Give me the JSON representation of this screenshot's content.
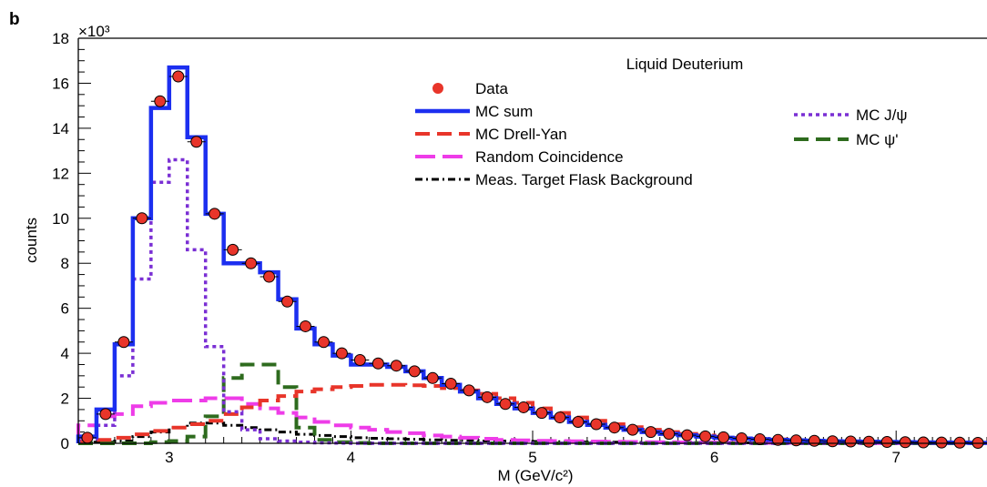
{
  "panel_label": "b",
  "chart_data": {
    "type": "line",
    "title": "Liquid Deuterium",
    "xlabel": "M (GeV/c²)",
    "ylabel": "counts",
    "y_multiplier": "×10³",
    "xlim": [
      2.5,
      7.5
    ],
    "ylim": [
      0,
      18
    ],
    "x_ticks": [
      "3",
      "4",
      "5",
      "6",
      "7"
    ],
    "y_ticks": [
      "0",
      "2",
      "4",
      "6",
      "8",
      "10",
      "12",
      "14",
      "16",
      "18"
    ],
    "bin_edges": [
      2.5,
      2.6,
      2.7,
      2.8,
      2.9,
      3.0,
      3.1,
      3.2,
      3.3,
      3.4,
      3.5,
      3.6,
      3.7,
      3.8,
      3.9,
      4.0,
      4.1,
      4.2,
      4.3,
      4.4,
      4.5,
      4.6,
      4.7,
      4.8,
      4.9,
      5.0,
      5.1,
      5.2,
      5.3,
      5.4,
      5.5,
      5.6,
      5.7,
      5.8,
      5.9,
      6.0,
      6.1,
      6.2,
      6.3,
      6.4,
      6.5,
      6.6,
      6.7,
      6.8,
      6.9,
      7.0,
      7.1,
      7.2,
      7.3,
      7.4,
      7.5
    ],
    "series": [
      {
        "name": "Data",
        "style": "markers",
        "color": "#e8352a",
        "values": [
          0.25,
          1.3,
          4.5,
          10.0,
          15.2,
          16.3,
          13.4,
          10.2,
          8.6,
          8.0,
          7.4,
          6.3,
          5.2,
          4.5,
          4.0,
          3.7,
          3.55,
          3.45,
          3.2,
          2.9,
          2.65,
          2.35,
          2.05,
          1.75,
          1.6,
          1.35,
          1.15,
          0.95,
          0.85,
          0.7,
          0.6,
          0.5,
          0.42,
          0.36,
          0.31,
          0.27,
          0.22,
          0.18,
          0.15,
          0.13,
          0.11,
          0.09,
          0.08,
          0.07,
          0.06,
          0.05,
          0.04,
          0.035,
          0.03,
          0.02
        ]
      },
      {
        "name": "MC sum",
        "style": "solid",
        "color": "#1c2ff0",
        "values": [
          0.3,
          1.5,
          4.4,
          10.0,
          14.9,
          16.7,
          13.6,
          10.2,
          8.0,
          8.0,
          7.6,
          6.4,
          5.1,
          4.4,
          3.9,
          3.5,
          3.5,
          3.4,
          3.2,
          2.9,
          2.6,
          2.3,
          2.0,
          1.75,
          1.55,
          1.35,
          1.15,
          0.95,
          0.82,
          0.7,
          0.6,
          0.5,
          0.42,
          0.36,
          0.3,
          0.25,
          0.21,
          0.18,
          0.15,
          0.13,
          0.11,
          0.09,
          0.08,
          0.07,
          0.06,
          0.05,
          0.04,
          0.035,
          0.03,
          0.02
        ]
      },
      {
        "name": "MC Drell-Yan",
        "style": "dash",
        "color": "#e8352a",
        "values": [
          0.1,
          0.15,
          0.25,
          0.4,
          0.55,
          0.7,
          0.85,
          1.0,
          1.3,
          1.6,
          1.9,
          2.1,
          2.3,
          2.4,
          2.5,
          2.55,
          2.6,
          2.6,
          2.58,
          2.55,
          2.45,
          2.35,
          2.2,
          2.0,
          1.8,
          1.55,
          1.35,
          1.15,
          1.0,
          0.85,
          0.72,
          0.6,
          0.5,
          0.42,
          0.35,
          0.29,
          0.24,
          0.2,
          0.17,
          0.14,
          0.12,
          0.1,
          0.08,
          0.07,
          0.06,
          0.05,
          0.04,
          0.035,
          0.03,
          0.02
        ]
      },
      {
        "name": "Random Coincidence",
        "style": "longdash",
        "color": "#ee3ce8",
        "values": [
          0.8,
          1.2,
          1.3,
          1.65,
          1.8,
          1.9,
          1.9,
          2.0,
          2.0,
          1.75,
          1.55,
          1.35,
          1.15,
          0.95,
          0.8,
          0.7,
          0.6,
          0.5,
          0.45,
          0.35,
          0.3,
          0.25,
          0.2,
          0.15,
          0.13,
          0.11,
          0.1,
          0.09,
          0.08,
          0.07,
          0.06,
          0.05,
          0.05,
          0.04,
          0.04,
          0.03,
          0.03,
          0.03,
          0.02,
          0.02,
          0.02,
          0.02,
          0.01,
          0.01,
          0.01,
          0.01,
          0.01,
          0.01,
          0.01,
          0.01
        ]
      },
      {
        "name": "Meas. Target Flask Background",
        "style": "dashdot",
        "color": "#000000",
        "values": [
          0.05,
          0.05,
          0.1,
          0.3,
          0.5,
          0.7,
          0.9,
          0.9,
          0.8,
          0.7,
          0.6,
          0.5,
          0.4,
          0.35,
          0.3,
          0.25,
          0.22,
          0.2,
          0.18,
          0.15,
          0.13,
          0.12,
          0.1,
          0.1,
          0.09,
          0.08,
          0.07,
          0.06,
          0.05,
          0.05,
          0.04,
          0.04,
          0.03,
          0.03,
          0.03,
          0.02,
          0.02,
          0.02,
          0.02,
          0.02,
          0.01,
          0.01,
          0.01,
          0.01,
          0.01,
          0.01,
          0.01,
          0.01,
          0.01,
          0.01
        ]
      },
      {
        "name": "MC J/ψ",
        "style": "dot",
        "color": "#7a2fd4",
        "values": [
          0.2,
          0.8,
          3.0,
          7.3,
          11.6,
          12.6,
          8.6,
          4.3,
          1.4,
          0.6,
          0.2,
          0.1,
          0.05,
          0.02,
          0.01,
          0,
          0,
          0,
          0,
          0,
          0,
          0,
          0,
          0,
          0,
          0,
          0,
          0,
          0,
          0,
          0,
          0,
          0,
          0,
          0,
          0,
          0,
          0,
          0,
          0,
          0,
          0,
          0,
          0,
          0,
          0,
          0,
          0,
          0,
          0
        ]
      },
      {
        "name": "MC ψ'",
        "style": "dash",
        "color": "#2e6b1e",
        "values": [
          0,
          0,
          0,
          0,
          0.05,
          0.1,
          0.3,
          1.2,
          2.9,
          3.5,
          3.5,
          2.5,
          0.7,
          0.15,
          0.05,
          0.02,
          0,
          0,
          0,
          0,
          0,
          0,
          0,
          0,
          0,
          0,
          0,
          0,
          0,
          0,
          0,
          0,
          0,
          0,
          0,
          0,
          0,
          0,
          0,
          0,
          0,
          0,
          0,
          0,
          0,
          0,
          0,
          0,
          0,
          0
        ]
      }
    ],
    "legend_placement": "top-right",
    "grid": false
  }
}
